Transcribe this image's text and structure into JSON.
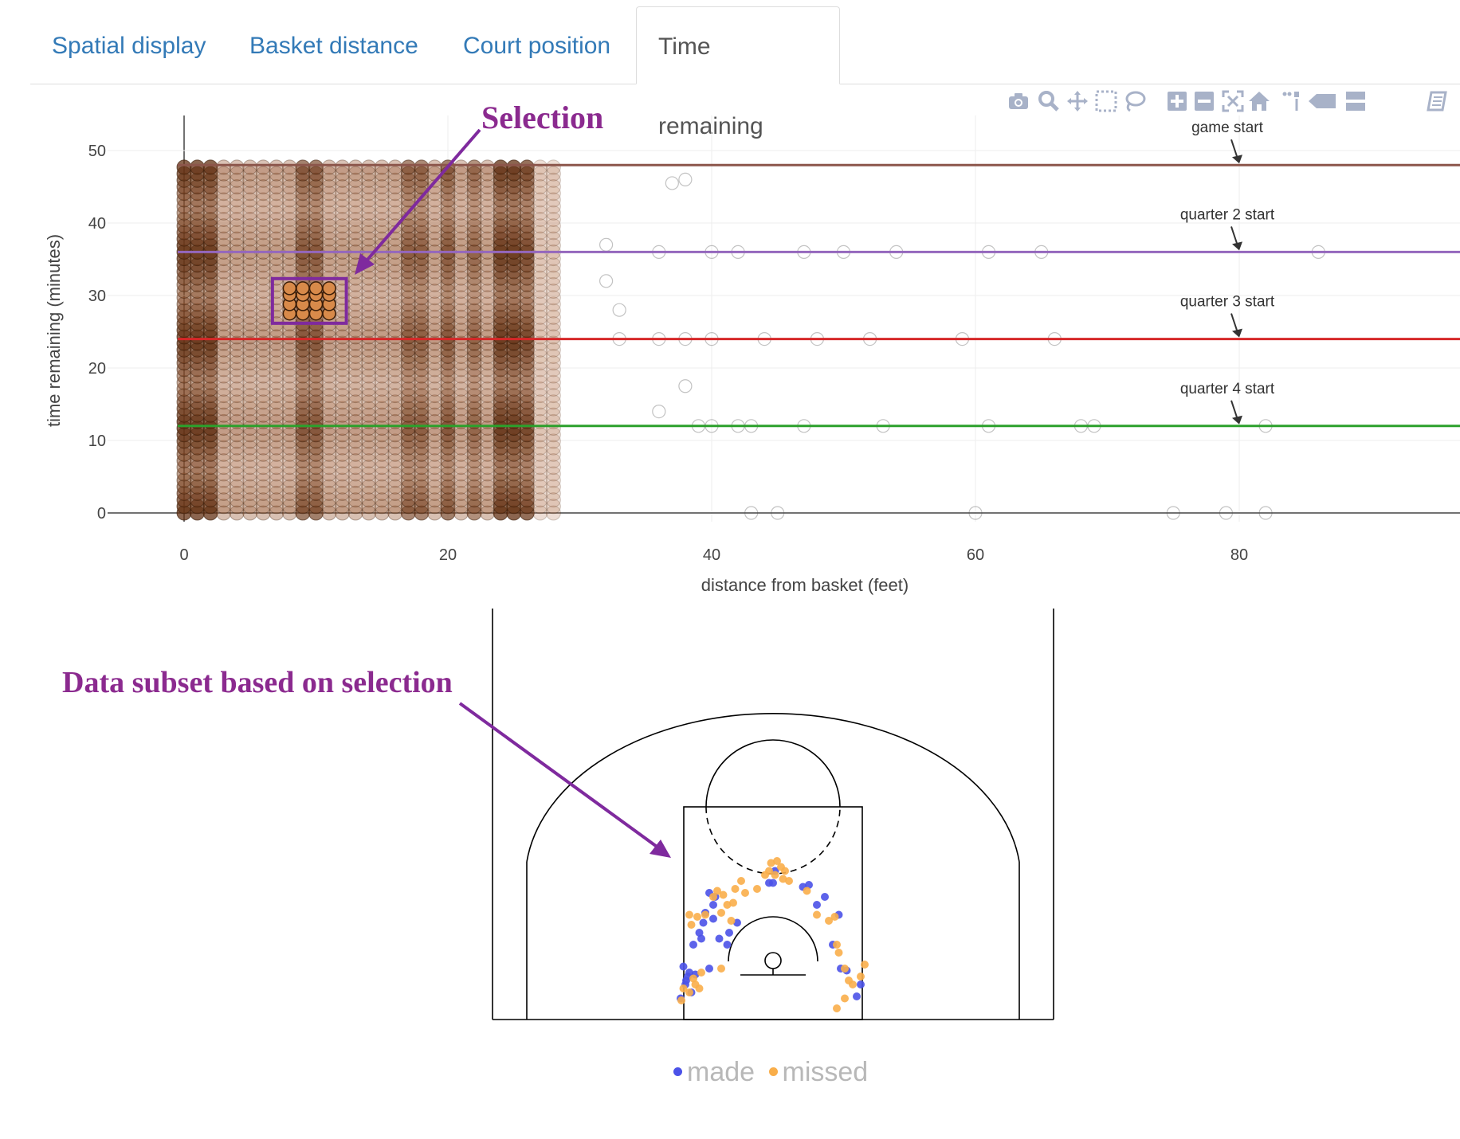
{
  "tabs": [
    {
      "label": "Spatial display",
      "active": false
    },
    {
      "label": "Basket distance",
      "active": false
    },
    {
      "label": "Court position",
      "active": false
    },
    {
      "label": "Time remaining",
      "active": true
    }
  ],
  "modebar": [
    "camera-icon",
    "zoom-icon",
    "pan-icon",
    "box-select-icon",
    "lasso-select-icon",
    "zoom-in-icon",
    "zoom-out-icon",
    "autoscale-icon",
    "reset-axes-icon",
    "spike-lines-icon",
    "hover-closest-icon",
    "hover-compare-icon",
    "plotly-logo-icon"
  ],
  "annotations": {
    "selection": "Selection",
    "subset": "Data subset based on selection"
  },
  "chart_data": [
    {
      "type": "scatter",
      "xlabel": "distance from basket (feet)",
      "ylabel": "time remaining (minutes)",
      "xlim": [
        -12,
        96
      ],
      "ylim": [
        -2,
        55
      ],
      "xticks": [
        0,
        20,
        40,
        60,
        80
      ],
      "yticks": [
        0,
        10,
        20,
        30,
        40,
        50
      ],
      "grid": true,
      "marker_color": "#8b3a0e",
      "dense_columns_x": [
        0,
        1,
        2,
        3,
        4,
        5,
        6,
        7,
        8,
        9,
        10,
        11,
        12,
        13,
        14,
        15,
        16,
        17,
        18,
        19,
        20,
        21,
        22,
        23,
        24,
        25,
        26,
        27,
        28
      ],
      "sparse_points": [
        {
          "x": 37,
          "y": 45.5
        },
        {
          "x": 38,
          "y": 46
        },
        {
          "x": 32,
          "y": 37
        },
        {
          "x": 36,
          "y": 36
        },
        {
          "x": 40,
          "y": 36
        },
        {
          "x": 42,
          "y": 36
        },
        {
          "x": 47,
          "y": 36
        },
        {
          "x": 50,
          "y": 36
        },
        {
          "x": 54,
          "y": 36
        },
        {
          "x": 61,
          "y": 36
        },
        {
          "x": 65,
          "y": 36
        },
        {
          "x": 86,
          "y": 36
        },
        {
          "x": 32,
          "y": 32
        },
        {
          "x": 33,
          "y": 28
        },
        {
          "x": 33,
          "y": 24
        },
        {
          "x": 36,
          "y": 24
        },
        {
          "x": 38,
          "y": 24
        },
        {
          "x": 40,
          "y": 24
        },
        {
          "x": 44,
          "y": 24
        },
        {
          "x": 48,
          "y": 24
        },
        {
          "x": 52,
          "y": 24
        },
        {
          "x": 59,
          "y": 24
        },
        {
          "x": 66,
          "y": 24
        },
        {
          "x": 38,
          "y": 17.5
        },
        {
          "x": 36,
          "y": 14
        },
        {
          "x": 39,
          "y": 12
        },
        {
          "x": 40,
          "y": 12
        },
        {
          "x": 42,
          "y": 12
        },
        {
          "x": 43,
          "y": 12
        },
        {
          "x": 47,
          "y": 12
        },
        {
          "x": 53,
          "y": 12
        },
        {
          "x": 61,
          "y": 12
        },
        {
          "x": 68,
          "y": 12
        },
        {
          "x": 69,
          "y": 12
        },
        {
          "x": 82,
          "y": 12
        },
        {
          "x": 43,
          "y": 0
        },
        {
          "x": 45,
          "y": 0
        },
        {
          "x": 60,
          "y": 0
        },
        {
          "x": 75,
          "y": 0
        },
        {
          "x": 79,
          "y": 0
        },
        {
          "x": 82,
          "y": 0
        }
      ],
      "reference_lines": [
        {
          "y": 48,
          "color": "#8c564b",
          "label": "game start"
        },
        {
          "y": 36,
          "color": "#9467bd",
          "label": "quarter 2 start"
        },
        {
          "y": 24,
          "color": "#d62728",
          "label": "quarter 3 start"
        },
        {
          "y": 12,
          "color": "#2ca02c",
          "label": "quarter 4 start"
        }
      ],
      "label_x": 80,
      "selection_box": {
        "x": [
          7,
          12
        ],
        "y": [
          26.5,
          32
        ]
      },
      "selected_points_x": [
        8,
        9,
        10,
        11
      ]
    },
    {
      "type": "scatter",
      "series": [
        {
          "name": "made",
          "color": "#4b52e8",
          "points": [
            [
              -200,
              40
            ],
            [
              -185,
              70
            ],
            [
              -175,
              95
            ],
            [
              -170,
              120
            ],
            [
              -150,
              105
            ],
            [
              -135,
              55
            ],
            [
              -110,
              70
            ],
            [
              -90,
              95
            ],
            [
              -115,
              40
            ],
            [
              -160,
              -20
            ],
            [
              -195,
              -35
            ],
            [
              -205,
              -80
            ],
            [
              -210,
              -30
            ],
            [
              -220,
              -60
            ],
            [
              -225,
              -15
            ],
            [
              -232,
              -95
            ],
            [
              -218,
              -50
            ],
            [
              -214,
              -40
            ],
            [
              -180,
              55
            ],
            [
              -150,
              140
            ],
            [
              -160,
              170
            ],
            [
              -145,
              160
            ],
            [
              -10,
              195
            ],
            [
              0,
              195
            ],
            [
              5,
              225
            ],
            [
              75,
              185
            ],
            [
              90,
              190
            ],
            [
              110,
              140
            ],
            [
              130,
              160
            ],
            [
              165,
              115
            ],
            [
              150,
              40
            ],
            [
              170,
              -20
            ],
            [
              185,
              -25
            ],
            [
              220,
              -60
            ],
            [
              210,
              -90
            ]
          ]
        },
        {
          "name": "missed",
          "color": "#f9ae4a",
          "points": [
            [
              -210,
              115
            ],
            [
              -205,
              90
            ],
            [
              -170,
              115
            ],
            [
              -190,
              110
            ],
            [
              -150,
              160
            ],
            [
              -125,
              165
            ],
            [
              -140,
              175
            ],
            [
              -100,
              145
            ],
            [
              -115,
              140
            ],
            [
              -130,
              120
            ],
            [
              -95,
              180
            ],
            [
              -80,
              200
            ],
            [
              -70,
              170
            ],
            [
              -40,
              180
            ],
            [
              -20,
              215
            ],
            [
              -5,
              245
            ],
            [
              10,
              250
            ],
            [
              20,
              235
            ],
            [
              -10,
              225
            ],
            [
              5,
              215
            ],
            [
              25,
              205
            ],
            [
              40,
              200
            ],
            [
              30,
              225
            ],
            [
              85,
              175
            ],
            [
              110,
              115
            ],
            [
              140,
              100
            ],
            [
              155,
              110
            ],
            [
              160,
              40
            ],
            [
              165,
              20
            ],
            [
              180,
              -20
            ],
            [
              190,
              -50
            ],
            [
              200,
              -60
            ],
            [
              220,
              -40
            ],
            [
              230,
              -10
            ],
            [
              180,
              -95
            ],
            [
              160,
              -120
            ],
            [
              -225,
              -70
            ],
            [
              -230,
              -100
            ],
            [
              -210,
              -80
            ],
            [
              -200,
              -45
            ],
            [
              -195,
              -60
            ],
            [
              -185,
              -70
            ],
            [
              -180,
              -30
            ],
            [
              -130,
              -20
            ],
            [
              -105,
              100
            ]
          ]
        }
      ],
      "legend": [
        "made",
        "missed"
      ],
      "legend_placement": "bottom-center"
    }
  ]
}
